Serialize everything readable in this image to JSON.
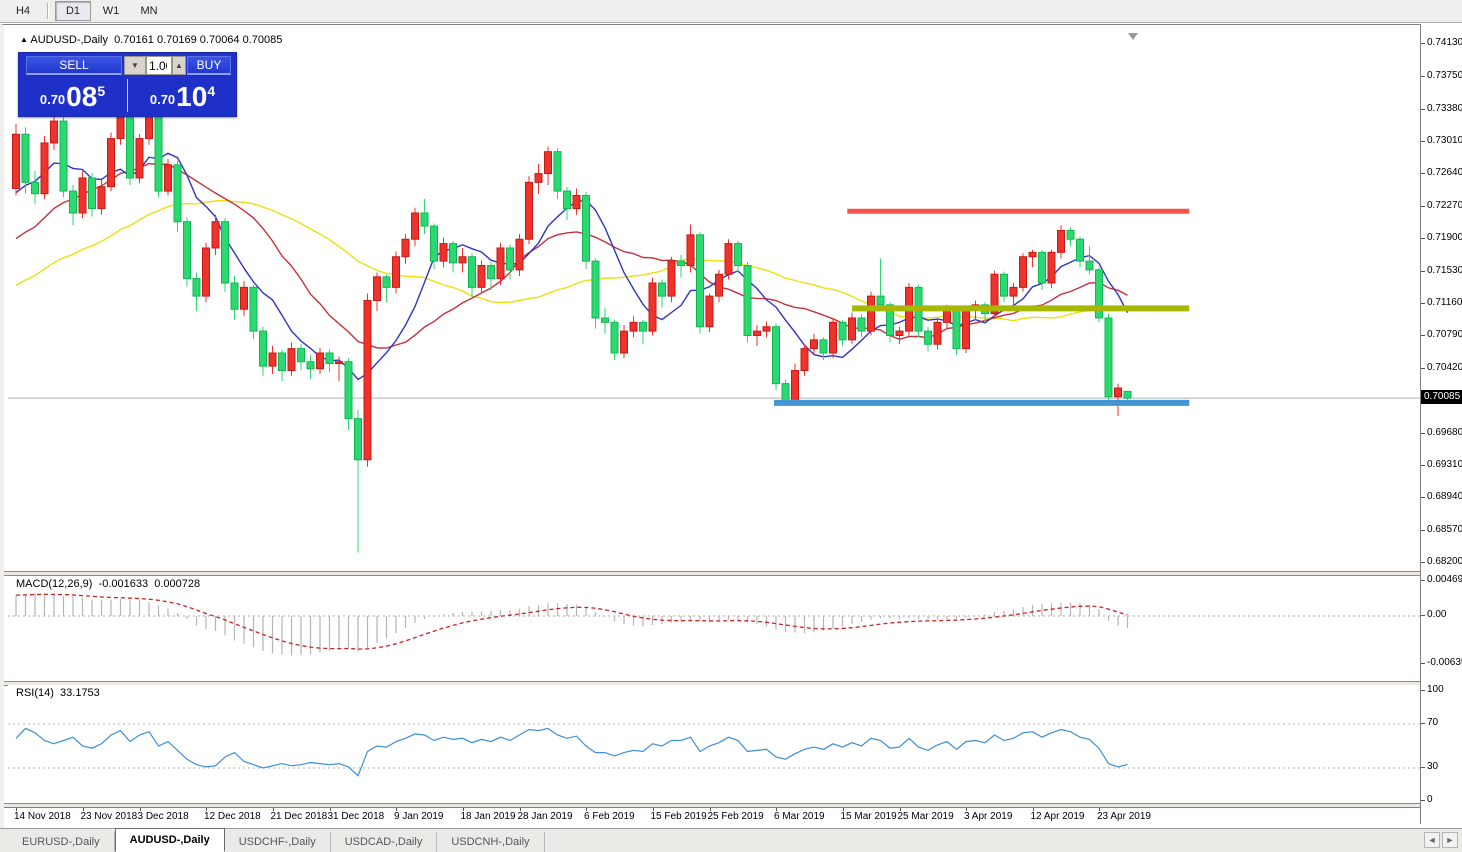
{
  "toolbar": {
    "timeframes": [
      "H4",
      "D1",
      "W1",
      "MN"
    ],
    "active_timeframe": "D1"
  },
  "window": {
    "collapse_arrow": "▲",
    "symbol_title": "AUDUSD-,Daily",
    "ohlc": {
      "open": "0.70161",
      "high": "0.70169",
      "low": "0.70064",
      "close": "0.70085"
    }
  },
  "trade_panel": {
    "sell_label": "SELL",
    "buy_label": "BUY",
    "volume": "1.00",
    "spin_down_glyph": "▼",
    "spin_up_glyph": "▲",
    "sell_price": {
      "prefix": "0.70",
      "big": "08",
      "sup": "5"
    },
    "buy_price": {
      "prefix": "0.70",
      "big": "10",
      "sup": "4"
    }
  },
  "price_axis": {
    "ticks": [
      {
        "text": "0.74130",
        "value": 0.7413
      },
      {
        "text": "0.73750",
        "value": 0.7375
      },
      {
        "text": "0.73380",
        "value": 0.7338
      },
      {
        "text": "0.73010",
        "value": 0.7301
      },
      {
        "text": "0.72640",
        "value": 0.7264
      },
      {
        "text": "0.72270",
        "value": 0.7227
      },
      {
        "text": "0.71900",
        "value": 0.719
      },
      {
        "text": "0.71530",
        "value": 0.7153
      },
      {
        "text": "0.71160",
        "value": 0.7116
      },
      {
        "text": "0.70790",
        "value": 0.7079
      },
      {
        "text": "0.70420",
        "value": 0.7042
      },
      {
        "text": "0.69680",
        "value": 0.6968
      },
      {
        "text": "0.69310",
        "value": 0.6931
      },
      {
        "text": "0.68940",
        "value": 0.6894
      },
      {
        "text": "0.68570",
        "value": 0.6857
      },
      {
        "text": "0.68200",
        "value": 0.682
      }
    ],
    "current_price": "0.70085",
    "current_price_value": 0.70085
  },
  "time_axis": [
    {
      "text": "14 Nov 2018",
      "index": 0
    },
    {
      "text": "23 Nov 2018",
      "index": 7
    },
    {
      "text": "3 Dec 2018",
      "index": 13
    },
    {
      "text": "12 Dec 2018",
      "index": 20
    },
    {
      "text": "21 Dec 2018",
      "index": 27
    },
    {
      "text": "31 Dec 2018",
      "index": 33
    },
    {
      "text": "9 Jan 2019",
      "index": 40
    },
    {
      "text": "18 Jan 2019",
      "index": 47
    },
    {
      "text": "28 Jan 2019",
      "index": 53
    },
    {
      "text": "6 Feb 2019",
      "index": 60
    },
    {
      "text": "15 Feb 2019",
      "index": 67
    },
    {
      "text": "25 Feb 2019",
      "index": 73
    },
    {
      "text": "6 Mar 2019",
      "index": 80
    },
    {
      "text": "15 Mar 2019",
      "index": 87
    },
    {
      "text": "25 Mar 2019",
      "index": 93
    },
    {
      "text": "3 Apr 2019",
      "index": 100
    },
    {
      "text": "12 Apr 2019",
      "index": 107
    },
    {
      "text": "23 Apr 2019",
      "index": 114
    }
  ],
  "chart_data": {
    "type": "candlestick",
    "title": "AUDUSD-,Daily",
    "x_range": [
      "14 Nov 2018",
      "26 Apr 2019"
    ],
    "price_range": [
      0.68109,
      0.74302
    ],
    "up_color_scheme": "red-up / green-down",
    "candles": [
      [
        0.7248,
        0.7322,
        0.724,
        0.731
      ],
      [
        0.731,
        0.7318,
        0.7242,
        0.7255
      ],
      [
        0.7255,
        0.7268,
        0.723,
        0.7242
      ],
      [
        0.7242,
        0.7308,
        0.7236,
        0.73
      ],
      [
        0.73,
        0.7334,
        0.7292,
        0.7325
      ],
      [
        0.7325,
        0.733,
        0.7238,
        0.7245
      ],
      [
        0.7245,
        0.7252,
        0.7206,
        0.722
      ],
      [
        0.722,
        0.7268,
        0.7214,
        0.726
      ],
      [
        0.726,
        0.7266,
        0.7216,
        0.7225
      ],
      [
        0.7225,
        0.7258,
        0.7218,
        0.725
      ],
      [
        0.725,
        0.7312,
        0.7245,
        0.7305
      ],
      [
        0.7305,
        0.7344,
        0.7298,
        0.733
      ],
      [
        0.733,
        0.7336,
        0.7252,
        0.726
      ],
      [
        0.726,
        0.731,
        0.7254,
        0.7305
      ],
      [
        0.7305,
        0.734,
        0.7298,
        0.7335
      ],
      [
        0.7335,
        0.7338,
        0.7238,
        0.7245
      ],
      [
        0.7245,
        0.7282,
        0.724,
        0.7275
      ],
      [
        0.7275,
        0.728,
        0.7198,
        0.721
      ],
      [
        0.721,
        0.7215,
        0.7136,
        0.7145
      ],
      [
        0.7145,
        0.7152,
        0.7108,
        0.7125
      ],
      [
        0.7125,
        0.7186,
        0.7118,
        0.718
      ],
      [
        0.718,
        0.7218,
        0.7172,
        0.721
      ],
      [
        0.721,
        0.7214,
        0.713,
        0.714
      ],
      [
        0.714,
        0.7148,
        0.7098,
        0.711
      ],
      [
        0.711,
        0.7142,
        0.7102,
        0.7135
      ],
      [
        0.7135,
        0.7138,
        0.7076,
        0.7085
      ],
      [
        0.7085,
        0.709,
        0.7034,
        0.7045
      ],
      [
        0.7045,
        0.7068,
        0.7036,
        0.706
      ],
      [
        0.706,
        0.7064,
        0.7028,
        0.704
      ],
      [
        0.704,
        0.7072,
        0.7034,
        0.7065
      ],
      [
        0.7065,
        0.707,
        0.704,
        0.705
      ],
      [
        0.705,
        0.7058,
        0.703,
        0.7042
      ],
      [
        0.7042,
        0.7066,
        0.7036,
        0.706
      ],
      [
        0.706,
        0.7064,
        0.7038,
        0.7048
      ],
      [
        0.7048,
        0.7056,
        0.7028,
        0.705
      ],
      [
        0.705,
        0.7054,
        0.6972,
        0.6985
      ],
      [
        0.6985,
        0.6995,
        0.6832,
        0.6938
      ],
      [
        0.6938,
        0.7128,
        0.693,
        0.712
      ],
      [
        0.712,
        0.7152,
        0.7108,
        0.7147
      ],
      [
        0.7147,
        0.715,
        0.7118,
        0.7135
      ],
      [
        0.7135,
        0.7176,
        0.7128,
        0.717
      ],
      [
        0.717,
        0.7196,
        0.7162,
        0.719
      ],
      [
        0.719,
        0.7226,
        0.7182,
        0.722
      ],
      [
        0.722,
        0.7236,
        0.7196,
        0.7205
      ],
      [
        0.7205,
        0.7208,
        0.7156,
        0.7165
      ],
      [
        0.7165,
        0.7192,
        0.7158,
        0.7185
      ],
      [
        0.7185,
        0.7188,
        0.7152,
        0.7163
      ],
      [
        0.7163,
        0.718,
        0.7152,
        0.717
      ],
      [
        0.717,
        0.7174,
        0.7124,
        0.7135
      ],
      [
        0.7135,
        0.7166,
        0.7128,
        0.716
      ],
      [
        0.716,
        0.7164,
        0.7132,
        0.7145
      ],
      [
        0.7145,
        0.7186,
        0.7138,
        0.718
      ],
      [
        0.718,
        0.7184,
        0.7144,
        0.7155
      ],
      [
        0.7155,
        0.7196,
        0.7148,
        0.719
      ],
      [
        0.719,
        0.7262,
        0.7184,
        0.7255
      ],
      [
        0.7255,
        0.7276,
        0.7242,
        0.7265
      ],
      [
        0.7265,
        0.7296,
        0.7252,
        0.729
      ],
      [
        0.729,
        0.7294,
        0.7236,
        0.7245
      ],
      [
        0.7245,
        0.725,
        0.7212,
        0.7225
      ],
      [
        0.7225,
        0.7248,
        0.7218,
        0.724
      ],
      [
        0.724,
        0.7244,
        0.7156,
        0.7165
      ],
      [
        0.7165,
        0.7168,
        0.7088,
        0.71
      ],
      [
        0.71,
        0.7112,
        0.7082,
        0.7095
      ],
      [
        0.7095,
        0.7098,
        0.7052,
        0.706
      ],
      [
        0.706,
        0.7092,
        0.7054,
        0.7085
      ],
      [
        0.7085,
        0.7102,
        0.7078,
        0.7095
      ],
      [
        0.7095,
        0.7098,
        0.707,
        0.7085
      ],
      [
        0.7085,
        0.7146,
        0.708,
        0.714
      ],
      [
        0.714,
        0.7144,
        0.7112,
        0.7125
      ],
      [
        0.7125,
        0.717,
        0.7118,
        0.7165
      ],
      [
        0.7165,
        0.7172,
        0.7146,
        0.716
      ],
      [
        0.716,
        0.7207,
        0.7152,
        0.7195
      ],
      [
        0.7195,
        0.7198,
        0.7082,
        0.709
      ],
      [
        0.709,
        0.7128,
        0.7084,
        0.7125
      ],
      [
        0.7125,
        0.7155,
        0.7118,
        0.715
      ],
      [
        0.715,
        0.719,
        0.7144,
        0.7185
      ],
      [
        0.7185,
        0.7188,
        0.7152,
        0.716
      ],
      [
        0.716,
        0.7164,
        0.7072,
        0.708
      ],
      [
        0.708,
        0.7092,
        0.7068,
        0.7085
      ],
      [
        0.7085,
        0.7096,
        0.7078,
        0.709
      ],
      [
        0.709,
        0.7094,
        0.7018,
        0.7025
      ],
      [
        0.7025,
        0.703,
        0.7003,
        0.7005
      ],
      [
        0.7005,
        0.7048,
        0.7,
        0.704
      ],
      [
        0.704,
        0.707,
        0.7034,
        0.7065
      ],
      [
        0.7065,
        0.7082,
        0.7058,
        0.7075
      ],
      [
        0.7075,
        0.7078,
        0.7052,
        0.706
      ],
      [
        0.706,
        0.71,
        0.7054,
        0.7095
      ],
      [
        0.7095,
        0.7098,
        0.7068,
        0.7075
      ],
      [
        0.7075,
        0.7106,
        0.707,
        0.71
      ],
      [
        0.71,
        0.7104,
        0.7078,
        0.7085
      ],
      [
        0.7085,
        0.713,
        0.708,
        0.7125
      ],
      [
        0.7125,
        0.7168,
        0.7108,
        0.7115
      ],
      [
        0.7115,
        0.7118,
        0.7072,
        0.708
      ],
      [
        0.708,
        0.709,
        0.707,
        0.7085
      ],
      [
        0.7085,
        0.714,
        0.708,
        0.7135
      ],
      [
        0.7135,
        0.7138,
        0.7078,
        0.7085
      ],
      [
        0.7085,
        0.709,
        0.7062,
        0.707
      ],
      [
        0.707,
        0.71,
        0.7064,
        0.7095
      ],
      [
        0.7095,
        0.7115,
        0.7088,
        0.711
      ],
      [
        0.711,
        0.7114,
        0.7058,
        0.7065
      ],
      [
        0.7065,
        0.7114,
        0.706,
        0.711
      ],
      [
        0.711,
        0.712,
        0.7098,
        0.7115
      ],
      [
        0.7115,
        0.7118,
        0.7096,
        0.7105
      ],
      [
        0.7105,
        0.7154,
        0.71,
        0.715
      ],
      [
        0.715,
        0.7153,
        0.7118,
        0.7125
      ],
      [
        0.7125,
        0.714,
        0.7112,
        0.7135
      ],
      [
        0.7135,
        0.7174,
        0.713,
        0.717
      ],
      [
        0.717,
        0.7178,
        0.7158,
        0.7175
      ],
      [
        0.7175,
        0.7178,
        0.7132,
        0.714
      ],
      [
        0.714,
        0.7178,
        0.7134,
        0.7175
      ],
      [
        0.7175,
        0.7206,
        0.7168,
        0.72
      ],
      [
        0.72,
        0.7204,
        0.7182,
        0.719
      ],
      [
        0.719,
        0.7193,
        0.7158,
        0.7165
      ],
      [
        0.7165,
        0.7182,
        0.715,
        0.7155
      ],
      [
        0.7155,
        0.7158,
        0.7095,
        0.71
      ],
      [
        0.71,
        0.7105,
        0.7005,
        0.701
      ],
      [
        0.701,
        0.7025,
        0.6988,
        0.702
      ],
      [
        0.70161,
        0.70169,
        0.70064,
        0.70085
      ]
    ],
    "ma_seed": [
      0.7058,
      0.7042,
      0.7066,
      0.705,
      0.7074,
      0.7058,
      0.7082,
      0.7066,
      0.709,
      0.7074,
      0.7098,
      0.7082,
      0.7106,
      0.709,
      0.7114,
      0.7098,
      0.7122,
      0.7106,
      0.713,
      0.7138,
      0.7122,
      0.7146,
      0.713,
      0.7154,
      0.7162,
      0.7146,
      0.717,
      0.7188,
      0.7205,
      0.722,
      0.7238,
      0.7252,
      0.7262,
      0.727
    ],
    "moving_averages": [
      {
        "name": "fast-ma",
        "period": 8,
        "color": "#2d35c4"
      },
      {
        "name": "medium-ma",
        "period": 17,
        "color": "#c8303c"
      },
      {
        "name": "slow-ma",
        "period": 34,
        "color": "#ece00e"
      }
    ],
    "hlines": [
      {
        "name": "resistance-line",
        "price": 0.7222,
        "color": "#f9544c",
        "from_index": 87.5,
        "to_index": 123.5,
        "thickness": 5
      },
      {
        "name": "pivot-line",
        "price": 0.7111,
        "color": "#a8b800",
        "from_index": 88.0,
        "to_index": 123.5,
        "thickness": 6
      },
      {
        "name": "support-line",
        "price": 0.7003,
        "color": "#4294d4",
        "from_index": 79.8,
        "to_index": 123.5,
        "thickness": 6
      }
    ]
  },
  "macd": {
    "label": "MACD(12,26,9)",
    "main_value": "-0.001633",
    "signal_value": "0.000728",
    "axis_ticks": [
      {
        "text": "0.004694",
        "value": 0.004694
      },
      {
        "text": "0.00",
        "value": 0.0
      },
      {
        "text": "-0.00639",
        "value": -0.00639
      }
    ],
    "values": [
      0.0028,
      0.003,
      0.0031,
      0.003,
      0.0029,
      0.0027,
      0.0026,
      0.0024,
      0.0022,
      0.0021,
      0.0022,
      0.0023,
      0.0021,
      0.0021,
      0.0019,
      0.0014,
      0.001,
      0.0004,
      -0.0004,
      -0.0013,
      -0.0018,
      -0.002,
      -0.0026,
      -0.0033,
      -0.0037,
      -0.0042,
      -0.0047,
      -0.005,
      -0.0052,
      -0.0053,
      -0.0052,
      -0.0051,
      -0.0049,
      -0.0047,
      -0.0044,
      -0.0043,
      -0.0048,
      -0.0043,
      -0.0036,
      -0.003,
      -0.0023,
      -0.0016,
      -0.0009,
      -0.0004,
      -0.0001,
      0.0002,
      0.0004,
      0.0006,
      0.0006,
      0.0006,
      0.0007,
      0.0008,
      0.0008,
      0.001,
      0.0013,
      0.0015,
      0.0017,
      0.0017,
      0.0016,
      0.0015,
      0.0011,
      0.0005,
      -0.0001,
      -0.0007,
      -0.0011,
      -0.0013,
      -0.0014,
      -0.0012,
      -0.0011,
      -0.0009,
      -0.0007,
      -0.0005,
      -0.0007,
      -0.0008,
      -0.0007,
      -0.0005,
      -0.0005,
      -0.0008,
      -0.0011,
      -0.0014,
      -0.0018,
      -0.0021,
      -0.0022,
      -0.0023,
      -0.0022,
      -0.002,
      -0.0017,
      -0.0014,
      -0.0011,
      -0.0008,
      -0.0005,
      -0.0003,
      -0.0003,
      -0.0004,
      -0.0003,
      -0.0004,
      -0.0005,
      -0.0005,
      -0.0004,
      -0.0004,
      -0.0002,
      0.0,
      0.0002,
      0.0005,
      0.0007,
      0.0009,
      0.0012,
      0.0015,
      0.0016,
      0.0017,
      0.0018,
      0.0018,
      0.0017,
      0.0015,
      0.0009,
      -0.0006,
      -0.0013,
      -0.001633
    ]
  },
  "rsi": {
    "label": "RSI(14)",
    "value": "33.1753",
    "axis_ticks": [
      {
        "text": "100",
        "value": 100
      },
      {
        "text": "70",
        "value": 70
      },
      {
        "text": "30",
        "value": 30
      },
      {
        "text": "0",
        "value": 0
      }
    ],
    "levels": [
      70,
      30
    ],
    "values": [
      57,
      66,
      62,
      55,
      52,
      55,
      58,
      50,
      48,
      52,
      60,
      64,
      54,
      60,
      63,
      50,
      54,
      46,
      38,
      33,
      31,
      32,
      40,
      44,
      36,
      33,
      30,
      32,
      34,
      32,
      33,
      35,
      34,
      33,
      34,
      31,
      23,
      45,
      50,
      49,
      54,
      57,
      61,
      60,
      55,
      58,
      56,
      57,
      53,
      56,
      54,
      58,
      55,
      60,
      65,
      64,
      66,
      60,
      57,
      59,
      50,
      44,
      44,
      41,
      44,
      46,
      45,
      52,
      50,
      55,
      55,
      58,
      45,
      50,
      53,
      58,
      55,
      45,
      46,
      47,
      40,
      38,
      43,
      47,
      49,
      47,
      52,
      49,
      53,
      50,
      57,
      55,
      48,
      49,
      57,
      49,
      46,
      51,
      54,
      47,
      54,
      55,
      53,
      60,
      55,
      57,
      62,
      63,
      58,
      62,
      65,
      63,
      58,
      56,
      48,
      34,
      31,
      33.1753
    ]
  },
  "tabs": {
    "items": [
      "EURUSD-,Daily",
      "AUDUSD-,Daily",
      "USDCHF-,Daily",
      "USDCAD-,Daily",
      "USDCNH-,Daily"
    ],
    "active": "AUDUSD-,Daily",
    "nav_left": "◄",
    "nav_right": "►"
  },
  "colors": {
    "bull": "#ed332b",
    "bull_border": "#c51b14",
    "bear": "#2bd970",
    "bear_border": "#12b554",
    "macd_hist": "#b4b4b4",
    "macd_signal": "#cc2222",
    "rsi_line": "#3c8fd8",
    "price_line": "#b0b0b0",
    "trade_bg": "#1f30c8"
  }
}
